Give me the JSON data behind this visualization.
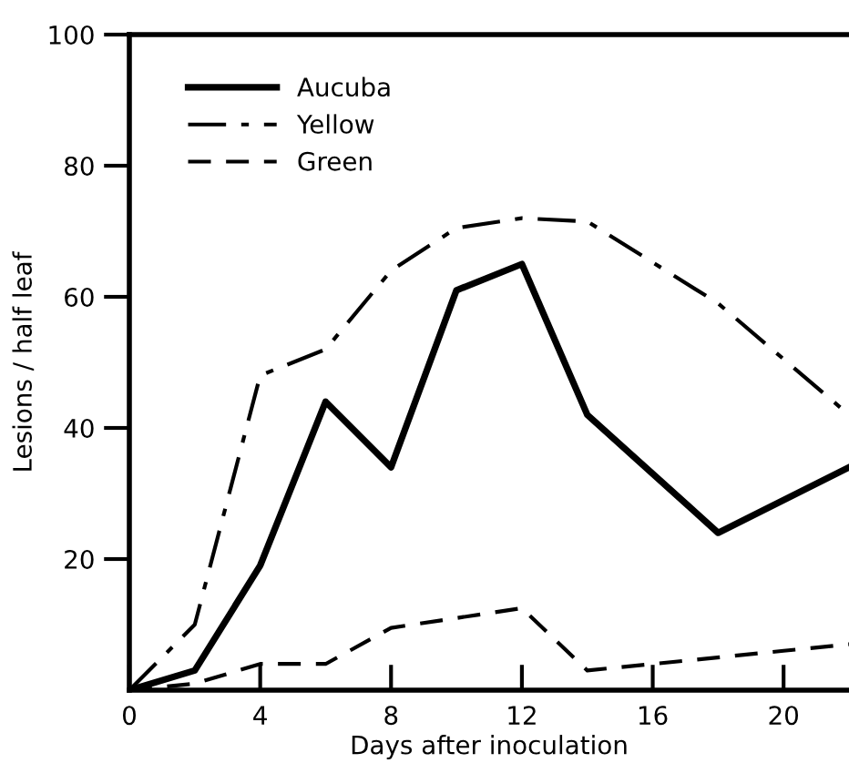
{
  "chart_data": {
    "type": "line",
    "xlabel": "Days after inoculation",
    "ylabel": "Lesions / half leaf",
    "xlim": [
      0,
      22
    ],
    "ylim": [
      0,
      100
    ],
    "xticks": [
      0,
      4,
      8,
      12,
      16,
      20
    ],
    "yticks": [
      20,
      40,
      60,
      80,
      100
    ],
    "grid": false,
    "legend": "top left",
    "marker": "none",
    "series": [
      {
        "name": "Aucuba",
        "color": "#000000",
        "line_style": "solid",
        "x": [
          0,
          2,
          4,
          6,
          8,
          10,
          12,
          14,
          18,
          22
        ],
        "values": [
          0,
          3,
          19,
          44,
          34,
          61,
          65,
          42,
          24,
          34
        ]
      },
      {
        "name": "Yellow",
        "color": "#000000",
        "line_style": "dashdot",
        "x": [
          0,
          2,
          4,
          6,
          8,
          10,
          12,
          14,
          18,
          22
        ],
        "values": [
          0,
          10,
          48,
          52,
          64,
          70.5,
          72,
          71.5,
          59,
          42
        ]
      },
      {
        "name": "Green",
        "color": "#000000",
        "line_style": "dashed",
        "x": [
          0,
          2,
          4,
          6,
          8,
          12,
          14,
          16,
          20,
          22
        ],
        "values": [
          0,
          1,
          4,
          4,
          9.5,
          12.5,
          3,
          4,
          6,
          7
        ]
      }
    ]
  }
}
